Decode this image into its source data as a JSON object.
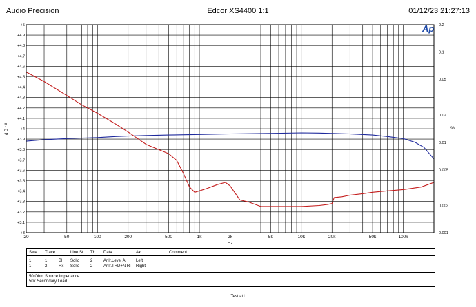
{
  "header": {
    "left": "Audio Precision",
    "center": "Edcor XS4400 1:1",
    "right": "01/12/23 21:27:13"
  },
  "logo_text": "Ap",
  "colors": {
    "trace1": "#1f2a9c",
    "trace2": "#c41e1e",
    "grid": "#000000",
    "logo": "#1f4aa8"
  },
  "chart_data": {
    "type": "line",
    "x_scale": "log",
    "xlim": [
      20,
      200000
    ],
    "xlabel": "Hz",
    "x_ticks": [
      {
        "v": 20,
        "t": "20"
      },
      {
        "v": 50,
        "t": "50"
      },
      {
        "v": 100,
        "t": "100"
      },
      {
        "v": 200,
        "t": "200"
      },
      {
        "v": 500,
        "t": "500"
      },
      {
        "v": 1000,
        "t": "1k"
      },
      {
        "v": 2000,
        "t": "2k"
      },
      {
        "v": 5000,
        "t": "5k"
      },
      {
        "v": 10000,
        "t": "10k"
      },
      {
        "v": 20000,
        "t": "20k"
      },
      {
        "v": 50000,
        "t": "50k"
      },
      {
        "v": 100000,
        "t": "100k"
      }
    ],
    "left_axis": {
      "label": "d B r A",
      "ylim": [
        3,
        5
      ],
      "ticks": [
        {
          "v": 3,
          "t": "+3"
        },
        {
          "v": 3.1,
          "t": "+3.1"
        },
        {
          "v": 3.2,
          "t": "+3.2"
        },
        {
          "v": 3.3,
          "t": "+3.3"
        },
        {
          "v": 3.4,
          "t": "+3.4"
        },
        {
          "v": 3.5,
          "t": "+3.5"
        },
        {
          "v": 3.6,
          "t": "+3.6"
        },
        {
          "v": 3.7,
          "t": "+3.7"
        },
        {
          "v": 3.8,
          "t": "+3.8"
        },
        {
          "v": 3.9,
          "t": "+3.9"
        },
        {
          "v": 4,
          "t": "+4"
        },
        {
          "v": 4.1,
          "t": "+4.1"
        },
        {
          "v": 4.2,
          "t": "+4.2"
        },
        {
          "v": 4.3,
          "t": "+4.3"
        },
        {
          "v": 4.4,
          "t": "+4.4"
        },
        {
          "v": 4.5,
          "t": "+4.5"
        },
        {
          "v": 4.6,
          "t": "+4.6"
        },
        {
          "v": 4.7,
          "t": "+4.7"
        },
        {
          "v": 4.8,
          "t": "+4.8"
        },
        {
          "v": 4.9,
          "t": "+4.9"
        },
        {
          "v": 5,
          "t": "+5"
        }
      ]
    },
    "right_axis": {
      "label": "%",
      "scale": "log",
      "ylim": [
        0.001,
        0.2
      ],
      "ticks": [
        {
          "v": 0.001,
          "t": "0.001"
        },
        {
          "v": 0.002,
          "t": "0.002"
        },
        {
          "v": 0.005,
          "t": "0.005"
        },
        {
          "v": 0.01,
          "t": "0.01"
        },
        {
          "v": 0.02,
          "t": "0.02"
        },
        {
          "v": 0.05,
          "t": "0.05"
        },
        {
          "v": 0.1,
          "t": "0.1"
        },
        {
          "v": 0.2,
          "t": "0.2"
        }
      ]
    },
    "grid": true,
    "series": [
      {
        "axis": "left",
        "color": "#1f2a9c",
        "x": [
          20,
          30,
          50,
          70,
          100,
          150,
          200,
          300,
          500,
          1000,
          2000,
          5000,
          10000,
          15000,
          20000,
          30000,
          50000,
          70000,
          100000,
          130000,
          160000,
          200000
        ],
        "y": [
          3.88,
          3.895,
          3.905,
          3.91,
          3.915,
          3.925,
          3.93,
          3.935,
          3.94,
          3.945,
          3.95,
          3.955,
          3.96,
          3.958,
          3.955,
          3.95,
          3.94,
          3.925,
          3.905,
          3.87,
          3.82,
          3.71
        ]
      },
      {
        "axis": "right",
        "color": "#c41e1e",
        "x": [
          20,
          30,
          50,
          70,
          100,
          150,
          200,
          300,
          500,
          600,
          700,
          800,
          900,
          1000,
          1200,
          1500,
          1800,
          2000,
          2500,
          3000,
          4000,
          5000,
          7000,
          10000,
          15000,
          18000,
          20000,
          21000,
          25000,
          30000,
          40000,
          50000,
          70000,
          100000,
          150000,
          200000
        ],
        "y": [
          0.06,
          0.047,
          0.033,
          0.026,
          0.021,
          0.016,
          0.013,
          0.0095,
          0.0075,
          0.0063,
          0.0045,
          0.0032,
          0.0028,
          0.0029,
          0.0031,
          0.0034,
          0.0036,
          0.0033,
          0.0023,
          0.0022,
          0.00195,
          0.00195,
          0.00195,
          0.00195,
          0.002,
          0.00205,
          0.0021,
          0.00245,
          0.0025,
          0.0026,
          0.0027,
          0.0028,
          0.0029,
          0.003,
          0.0032,
          0.0036
        ]
      }
    ]
  },
  "trace_table": {
    "headers": [
      "Swe",
      "Trace",
      "Line St",
      "Th",
      "Data",
      "Ax",
      "Comment"
    ],
    "rows": [
      [
        "1",
        "1",
        "Bl",
        "Solid",
        "2",
        "Anlr.Level A",
        "Left"
      ],
      [
        "1",
        "2",
        "Rx",
        "Solid",
        "2",
        "Anlr.THD+N Ri",
        "Right"
      ]
    ]
  },
  "notes": [
    "50 Ohm Source Impedance",
    "50k Secondary Load"
  ],
  "footer": "Test.at1"
}
